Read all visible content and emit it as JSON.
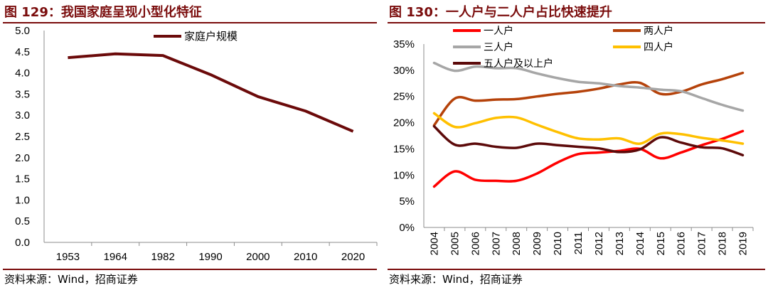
{
  "left": {
    "title": "图 129：我国家庭呈现小型化特征",
    "source": "资料来源：Wind，招商证券",
    "chart_data": {
      "type": "line",
      "title": "我国家庭呈现小型化特征",
      "categories": [
        "1953",
        "1964",
        "1982",
        "1990",
        "2000",
        "2010",
        "2020"
      ],
      "series": [
        {
          "name": "家庭户规模",
          "color": "#6b0a0a",
          "values": [
            4.36,
            4.45,
            4.41,
            3.96,
            3.44,
            3.1,
            2.62
          ]
        }
      ],
      "yticks": [
        "5.0",
        "4.5",
        "4.0",
        "3.5",
        "3.0",
        "2.5",
        "2.0",
        "1.5",
        "1.0",
        "0.5",
        "0.0"
      ],
      "ylim": [
        0,
        5
      ],
      "xlabel": "",
      "ylabel": "",
      "legend_position": "top"
    }
  },
  "right": {
    "title": "图 130：一人户与二人户占比快速提升",
    "source": "资料来源：Wind，招商证券",
    "chart_data": {
      "type": "line",
      "title": "一人户与二人户占比快速提升",
      "categories": [
        "2004",
        "2005",
        "2006",
        "2007",
        "2008",
        "2009",
        "2010",
        "2011",
        "2012",
        "2013",
        "2014",
        "2015",
        "2016",
        "2017",
        "2018",
        "2019"
      ],
      "series": [
        {
          "name": "一人户",
          "color": "#ff0000",
          "values": [
            7.8,
            10.7,
            9.1,
            8.9,
            8.9,
            10.3,
            12.4,
            14.0,
            14.3,
            14.6,
            15.0,
            13.2,
            14.3,
            15.7,
            16.9,
            18.4
          ]
        },
        {
          "name": "两人户",
          "color": "#b5420a",
          "values": [
            19.5,
            24.6,
            24.2,
            24.4,
            24.5,
            25.0,
            25.5,
            25.9,
            26.5,
            27.3,
            27.6,
            25.5,
            25.9,
            27.3,
            28.3,
            29.5
          ]
        },
        {
          "name": "三人户",
          "color": "#a6a6a6",
          "values": [
            31.4,
            29.9,
            30.7,
            30.4,
            30.4,
            29.4,
            28.5,
            27.8,
            27.5,
            27.0,
            26.7,
            26.3,
            26.0,
            24.7,
            23.4,
            22.3
          ]
        },
        {
          "name": "四人户",
          "color": "#ffc000",
          "values": [
            21.8,
            19.2,
            19.9,
            20.9,
            21.0,
            19.6,
            18.2,
            17.0,
            16.8,
            17.0,
            16.0,
            17.9,
            17.8,
            17.1,
            16.6,
            16.0
          ]
        },
        {
          "name": "五人户及以上户",
          "color": "#5c0a0a",
          "values": [
            19.3,
            15.8,
            16.0,
            15.4,
            15.2,
            16.0,
            15.7,
            15.4,
            15.1,
            14.4,
            14.9,
            17.2,
            16.2,
            15.3,
            15.1,
            13.8
          ]
        }
      ],
      "yticks": [
        "35%",
        "30%",
        "25%",
        "20%",
        "15%",
        "10%",
        "5%",
        "0%"
      ],
      "ylim": [
        0,
        35
      ],
      "xlabel": "",
      "ylabel": "",
      "legend_position": "top"
    }
  }
}
